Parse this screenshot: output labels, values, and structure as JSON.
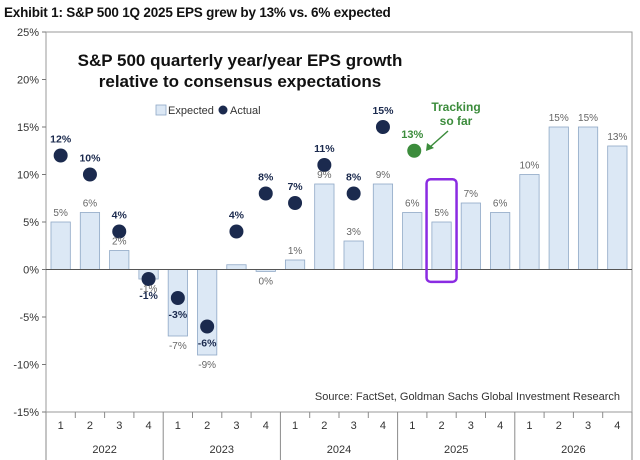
{
  "header": {
    "exhibit_title": "Exhibit 1: S&P 500 1Q 2025 EPS grew by 13% vs. 6% expected"
  },
  "chart_data": {
    "type": "bar",
    "title_lines": [
      "S&P 500 quarterly year/year EPS growth",
      "relative to consensus expectations"
    ],
    "categories": [
      "1",
      "2",
      "3",
      "4",
      "1",
      "2",
      "3",
      "4",
      "1",
      "2",
      "3",
      "4",
      "1",
      "2",
      "3",
      "4",
      "1",
      "2",
      "3",
      "4"
    ],
    "year_groups": [
      "2022",
      "2023",
      "2024",
      "2025",
      "2026"
    ],
    "ylim": [
      -15,
      25
    ],
    "yticks": [
      "-15%",
      "-10%",
      "-5%",
      "0%",
      "5%",
      "10%",
      "15%",
      "20%",
      "25%"
    ],
    "ytick_values": [
      -15,
      -10,
      -5,
      0,
      5,
      10,
      15,
      20,
      25
    ],
    "series": [
      {
        "name": "Expected",
        "type": "bar",
        "color": "#dce8f5",
        "values": [
          5,
          6,
          2,
          -1,
          -7,
          -9,
          0.5,
          -0.2,
          1,
          9,
          3,
          9,
          6,
          5,
          7,
          6,
          10,
          15,
          15,
          13
        ],
        "labels": [
          "5%",
          "6%",
          "2%",
          "-1%",
          "-7%",
          "-9%",
          "",
          "0%",
          "1%",
          "9%",
          "3%",
          "9%",
          "6%",
          "5%",
          "7%",
          "6%",
          "10%",
          "15%",
          "15%",
          "13%"
        ]
      },
      {
        "name": "Actual",
        "type": "scatter",
        "color": "#1b2a4e",
        "values": [
          12,
          10,
          4,
          -1,
          -3,
          -6,
          4,
          8,
          7,
          11,
          8,
          15,
          null,
          null,
          null,
          null,
          null,
          null,
          null,
          null
        ],
        "labels": [
          "12%",
          "10%",
          "4%",
          "-1%",
          "-3%",
          "-6%",
          "4%",
          "8%",
          "7%",
          "11%",
          "8%",
          "15%",
          "",
          "",
          "",
          "",
          "",
          "",
          "",
          ""
        ]
      }
    ],
    "tracking": {
      "quarter_index": 12,
      "value": 12.5,
      "label": "13%",
      "text_lines": [
        "Tracking",
        "so far"
      ],
      "color": "#3c8c3c"
    },
    "highlight": {
      "quarter_index": 13,
      "color": "#8a2be2"
    },
    "source": "Source: FactSet, Goldman Sachs Global Investment Research"
  }
}
